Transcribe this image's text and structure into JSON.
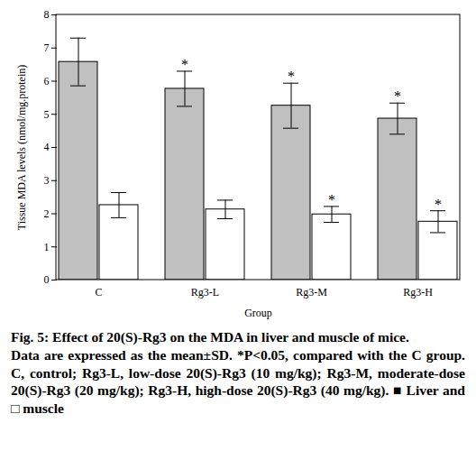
{
  "chart_data": {
    "type": "bar",
    "title": "Fig. 5: Effect of 20(S)-Rg3 on the MDA in liver and muscle of mice.",
    "caption": "Data are expressed as the mean±SD. *P<0.05, compared with the C group. C, control; Rg3-L, low-dose 20(S)-Rg3 (10 mg/kg); Rg3-M, moderate-dose 20(S)-Rg3 (20 mg/kg); Rg3-H, high-dose 20(S)-Rg3 (40 mg/kg). ■ Liver and □ muscle",
    "x_label": "Group",
    "y_label": "Tissue MDA levels (nmol/mg.protein)",
    "categories": [
      "C",
      "Rg3-L",
      "Rg3-M",
      "Rg3-H"
    ],
    "series": [
      {
        "name": "Liver",
        "color": "#c0c0c0",
        "values": [
          6.58,
          5.77,
          5.26,
          4.87
        ],
        "error": [
          0.72,
          0.53,
          0.68,
          0.47
        ],
        "significance": [
          null,
          "*",
          "*",
          "*"
        ]
      },
      {
        "name": "muscle",
        "color": "#ffffff",
        "values": [
          2.26,
          2.13,
          1.98,
          1.76
        ],
        "error": [
          0.38,
          0.28,
          0.24,
          0.33
        ],
        "significance": [
          null,
          null,
          "*",
          "*"
        ]
      }
    ],
    "ylim": [
      0,
      8
    ],
    "yticks": [
      0,
      1,
      2,
      3,
      4,
      5,
      6,
      7,
      8
    ],
    "grid": false
  }
}
